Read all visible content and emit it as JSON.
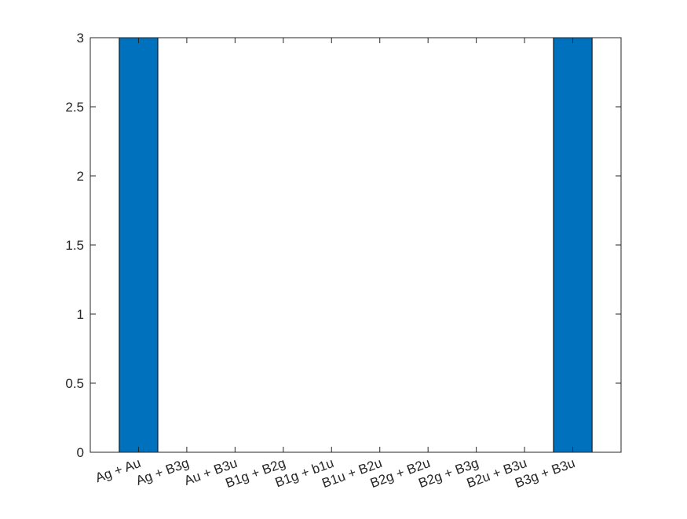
{
  "chart_data": {
    "type": "bar",
    "categories": [
      "Ag + Au",
      "Ag + B3g",
      "Au + B3u",
      "B1g + B2g",
      "B1g + b1u",
      "B1u + B2u",
      "B2g + B2u",
      "B2g + B3g",
      "B2u + B3u",
      "B3g + B3u"
    ],
    "values": [
      3,
      0,
      0,
      0,
      0,
      0,
      0,
      0,
      0,
      3
    ],
    "ylim": [
      0,
      3
    ],
    "yticks": [
      "0",
      "0.5",
      "1",
      "1.5",
      "2",
      "2.5",
      "3"
    ],
    "title": "",
    "xlabel": "",
    "ylabel": "",
    "grid": false,
    "bar_color": "#0072BD"
  }
}
